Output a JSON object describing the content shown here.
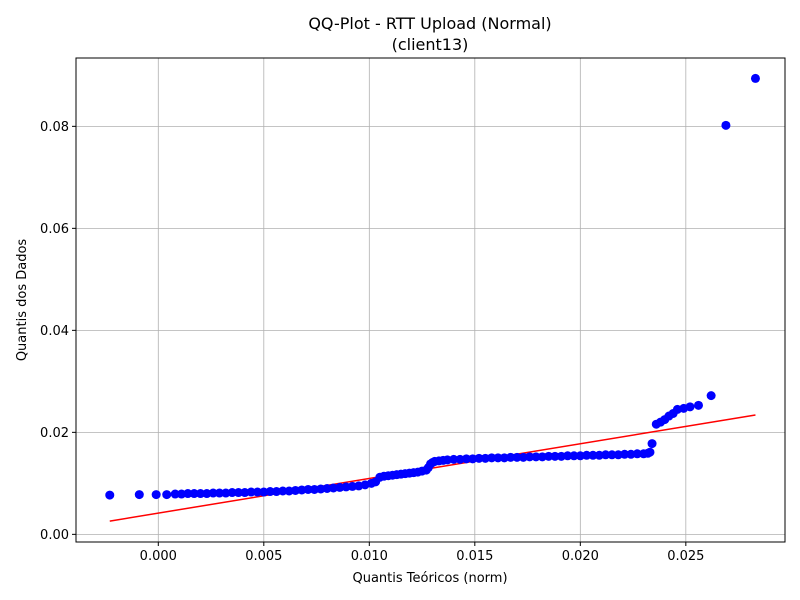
{
  "chart_data": {
    "type": "scatter",
    "title": "QQ-Plot - RTT Upload (Normal)",
    "subtitle": "(client13)",
    "xlabel": "Quantis Teóricos (norm)",
    "ylabel": "Quantis dos Dados",
    "xlim": [
      -0.0039,
      0.0297
    ],
    "ylim": [
      -0.0015,
      0.0934
    ],
    "xticks": [
      0.0,
      0.005,
      0.01,
      0.015,
      0.02,
      0.025
    ],
    "xtick_labels": [
      "0.000",
      "0.005",
      "0.010",
      "0.015",
      "0.020",
      "0.025"
    ],
    "yticks": [
      0.0,
      0.02,
      0.04,
      0.06,
      0.08
    ],
    "ytick_labels": [
      "0.00",
      "0.02",
      "0.04",
      "0.06",
      "0.08"
    ],
    "grid": true,
    "colors": {
      "points": "#0000ff",
      "fit_line": "#ff0000",
      "grid": "#b0b0b0"
    },
    "points": {
      "x": [
        -0.0023,
        -0.0009,
        -0.0001,
        0.0004,
        0.0008,
        0.0011,
        0.0014,
        0.0017,
        0.002,
        0.0023,
        0.0026,
        0.0029,
        0.0032,
        0.0035,
        0.0038,
        0.0041,
        0.0044,
        0.0047,
        0.005,
        0.0053,
        0.0056,
        0.0059,
        0.0062,
        0.0065,
        0.0068,
        0.0071,
        0.0074,
        0.0077,
        0.008,
        0.0083,
        0.0086,
        0.0089,
        0.0092,
        0.0095,
        0.0098,
        0.0101,
        0.0103,
        0.0105,
        0.0107,
        0.0109,
        0.0111,
        0.0113,
        0.0115,
        0.0117,
        0.0119,
        0.0121,
        0.0123,
        0.0125,
        0.0127,
        0.0128,
        0.0129,
        0.013,
        0.0131,
        0.0133,
        0.0135,
        0.0137,
        0.014,
        0.0143,
        0.0146,
        0.0149,
        0.0152,
        0.0155,
        0.0158,
        0.0161,
        0.0164,
        0.0167,
        0.017,
        0.0173,
        0.0176,
        0.0179,
        0.0182,
        0.0185,
        0.0188,
        0.0191,
        0.0194,
        0.0197,
        0.02,
        0.0203,
        0.0206,
        0.0209,
        0.0212,
        0.0215,
        0.0218,
        0.0221,
        0.0224,
        0.0227,
        0.023,
        0.0232,
        0.0233,
        0.0234,
        0.0236,
        0.0238,
        0.024,
        0.0242,
        0.0244,
        0.0246,
        0.0249,
        0.0252,
        0.0256,
        0.0262,
        0.0269,
        0.0283
      ],
      "y": [
        0.0077,
        0.0078,
        0.0078,
        0.0078,
        0.0079,
        0.0079,
        0.008,
        0.008,
        0.008,
        0.008,
        0.0081,
        0.0081,
        0.0081,
        0.0082,
        0.0082,
        0.0082,
        0.0083,
        0.0083,
        0.0083,
        0.0084,
        0.0084,
        0.0085,
        0.0085,
        0.0086,
        0.0087,
        0.0088,
        0.0088,
        0.0089,
        0.009,
        0.0091,
        0.0092,
        0.0093,
        0.0094,
        0.0095,
        0.0097,
        0.01,
        0.0103,
        0.0112,
        0.0114,
        0.0115,
        0.0116,
        0.0117,
        0.0118,
        0.0119,
        0.012,
        0.0121,
        0.0122,
        0.0124,
        0.0126,
        0.0131,
        0.0138,
        0.0141,
        0.0143,
        0.0144,
        0.0145,
        0.0146,
        0.0147,
        0.0147,
        0.0148,
        0.0148,
        0.0149,
        0.0149,
        0.015,
        0.015,
        0.015,
        0.0151,
        0.0151,
        0.0151,
        0.0152,
        0.0152,
        0.0152,
        0.0153,
        0.0153,
        0.0153,
        0.0154,
        0.0154,
        0.0154,
        0.0155,
        0.0155,
        0.0155,
        0.0156,
        0.0156,
        0.0156,
        0.0157,
        0.0157,
        0.0158,
        0.0158,
        0.0159,
        0.0161,
        0.0178,
        0.0216,
        0.022,
        0.0225,
        0.0232,
        0.0237,
        0.0245,
        0.0247,
        0.025,
        0.0253,
        0.0272,
        0.0802,
        0.0894
      ]
    },
    "fit_line": {
      "x": [
        -0.0023,
        0.0283
      ],
      "y": [
        0.0026,
        0.0234
      ]
    }
  }
}
